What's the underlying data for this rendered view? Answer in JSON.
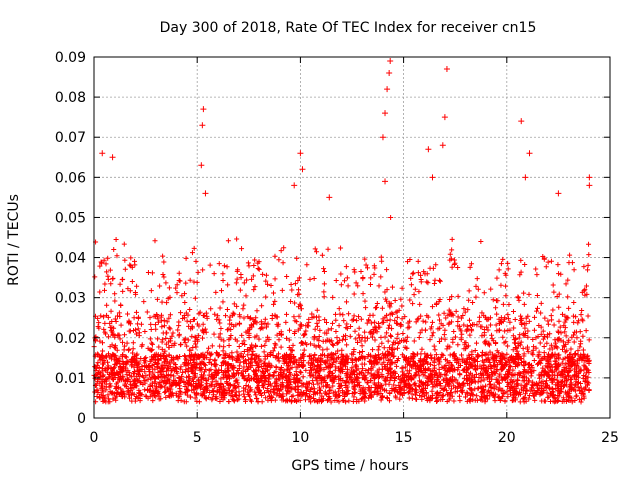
{
  "chart_data": {
    "type": "scatter",
    "title": "Day 300 of 2018, Rate Of TEC Index for receiver cn15",
    "xlabel": "GPS time / hours",
    "ylabel": "ROTI / TECUs",
    "xlim": [
      0,
      25
    ],
    "ylim": [
      0,
      0.09
    ],
    "x_ticks": [
      0,
      5,
      10,
      15,
      20,
      25
    ],
    "x_tick_labels": [
      "0",
      "5",
      "10",
      "15",
      "20",
      "25"
    ],
    "y_ticks": [
      0,
      0.01,
      0.02,
      0.03,
      0.04,
      0.05,
      0.06,
      0.07,
      0.08,
      0.09
    ],
    "y_tick_labels": [
      "0",
      "0.01",
      "0.02",
      "0.03",
      "0.04",
      "0.05",
      "0.06",
      "0.07",
      "0.08",
      "0.09"
    ],
    "grid": true,
    "marker": "+",
    "marker_color": "#ff0000",
    "x_range_of_data": [
      0,
      24
    ],
    "notable_points": [
      {
        "x": 0.4,
        "y": 0.066
      },
      {
        "x": 0.9,
        "y": 0.065
      },
      {
        "x": 5.3,
        "y": 0.077
      },
      {
        "x": 5.25,
        "y": 0.073
      },
      {
        "x": 5.2,
        "y": 0.063
      },
      {
        "x": 5.4,
        "y": 0.056
      },
      {
        "x": 9.7,
        "y": 0.058
      },
      {
        "x": 10.0,
        "y": 0.066
      },
      {
        "x": 10.1,
        "y": 0.062
      },
      {
        "x": 11.4,
        "y": 0.055
      },
      {
        "x": 14.0,
        "y": 0.07
      },
      {
        "x": 14.1,
        "y": 0.076
      },
      {
        "x": 14.2,
        "y": 0.082
      },
      {
        "x": 14.3,
        "y": 0.086
      },
      {
        "x": 14.35,
        "y": 0.089
      },
      {
        "x": 14.1,
        "y": 0.059
      },
      {
        "x": 16.2,
        "y": 0.067
      },
      {
        "x": 16.4,
        "y": 0.06
      },
      {
        "x": 16.9,
        "y": 0.068
      },
      {
        "x": 17.0,
        "y": 0.075
      },
      {
        "x": 17.1,
        "y": 0.087
      },
      {
        "x": 20.7,
        "y": 0.074
      },
      {
        "x": 21.1,
        "y": 0.066
      },
      {
        "x": 20.9,
        "y": 0.06
      },
      {
        "x": 22.5,
        "y": 0.056
      },
      {
        "x": 24.0,
        "y": 0.06
      },
      {
        "x": 24.0,
        "y": 0.058
      }
    ]
  }
}
